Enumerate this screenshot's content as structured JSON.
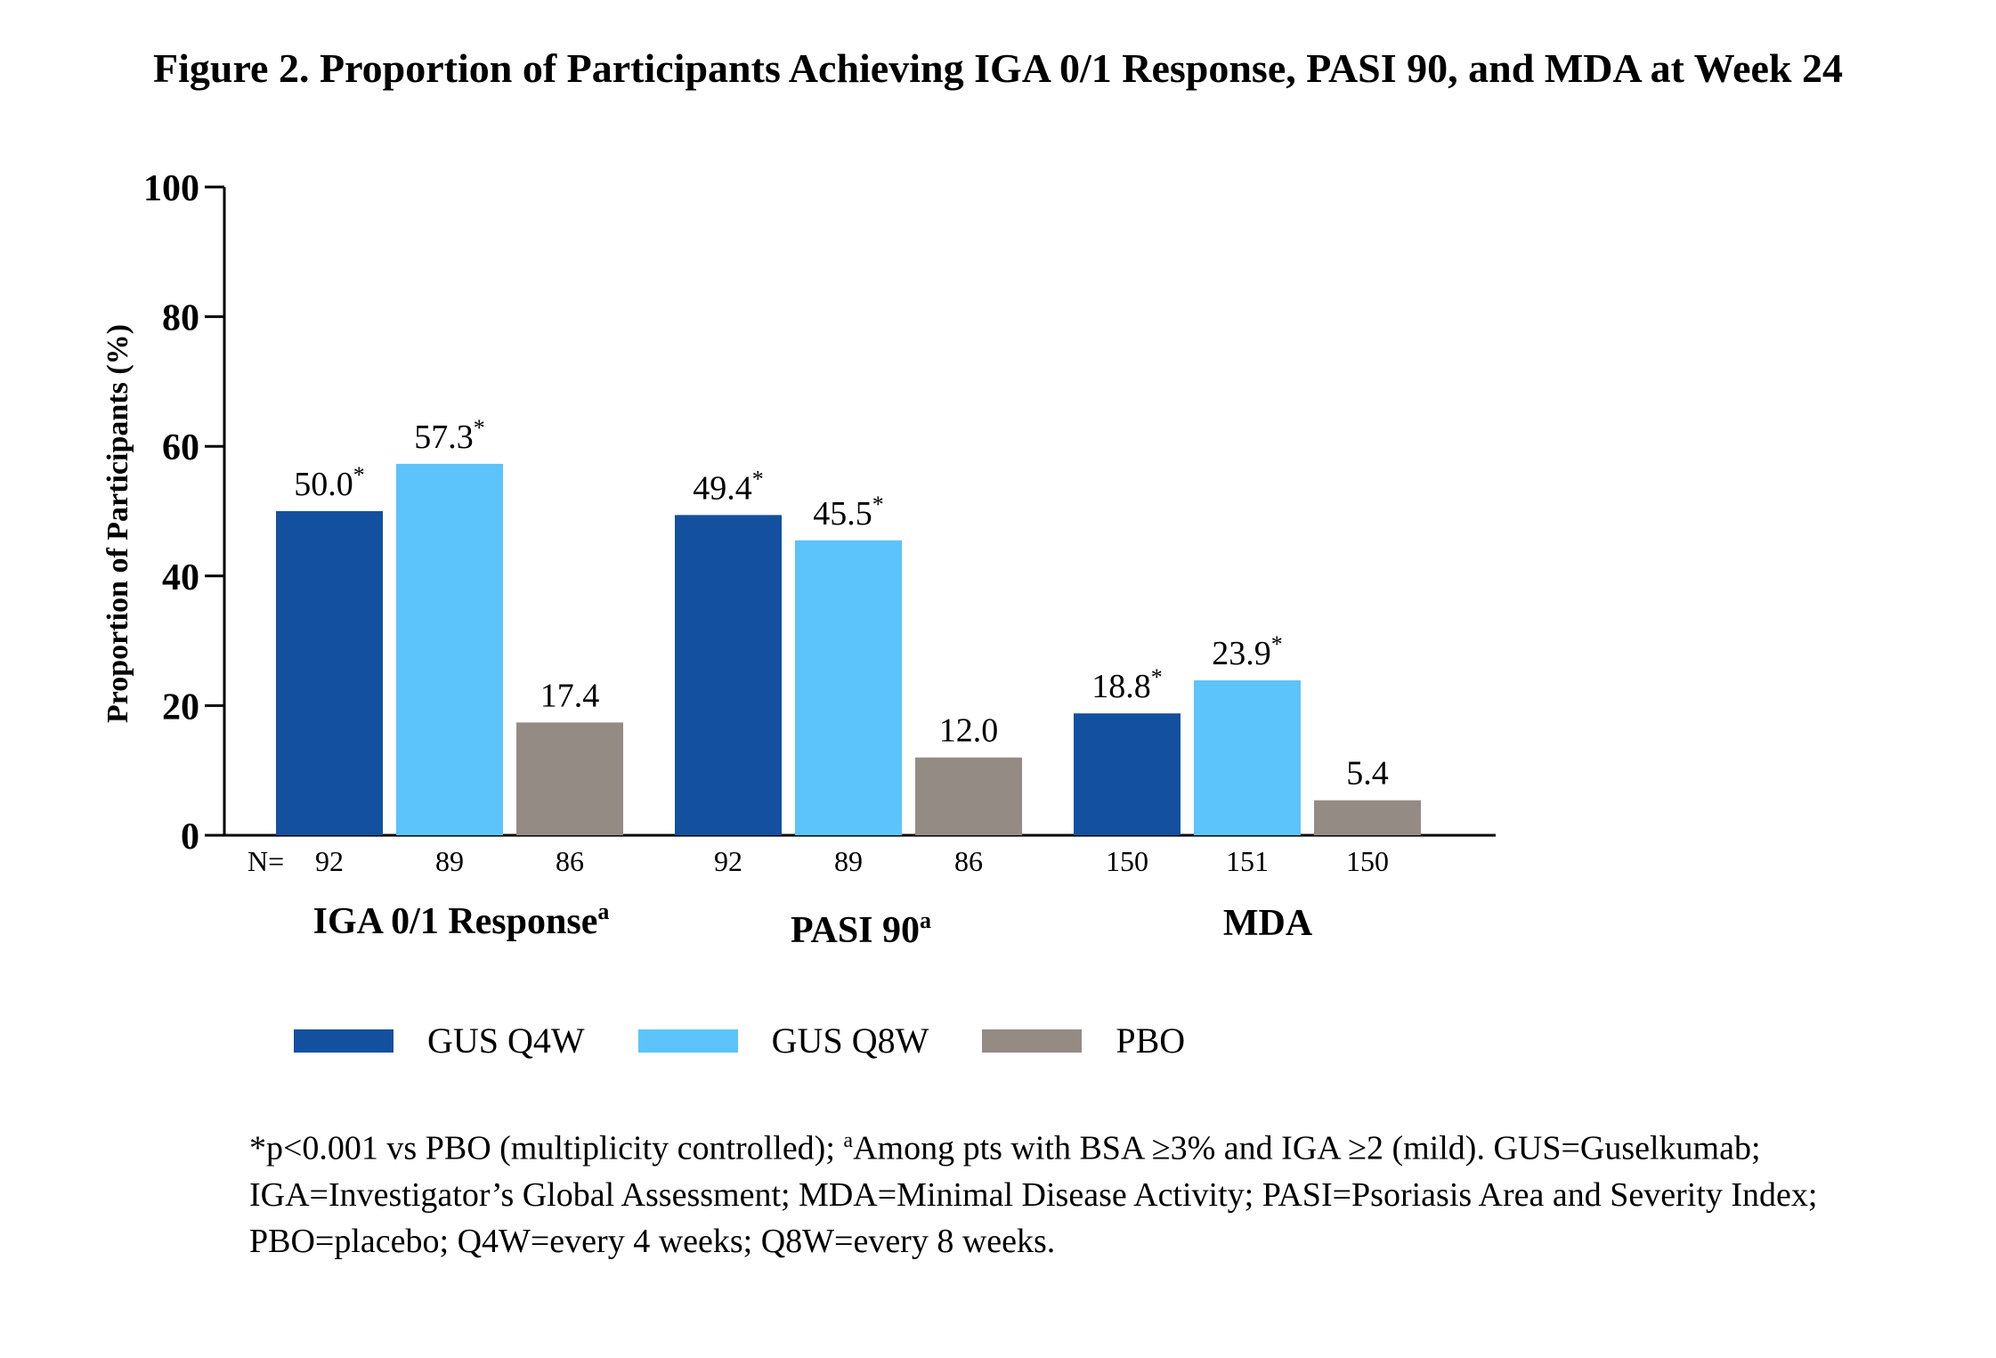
{
  "title": "Figure 2. Proportion of Participants Achieving IGA 0/1 Response, PASI 90, and MDA at Week 24",
  "chart_data": {
    "type": "bar",
    "ylabel": "Proportion of Participants (%)",
    "ylim": [
      0,
      100
    ],
    "yticks": [
      "0",
      "20",
      "40",
      "60",
      "80",
      "100"
    ],
    "n_prefix": "N=",
    "groups": [
      {
        "label": "IGA 0/1 Response",
        "sup": "a",
        "n": [
          "92",
          "89",
          "86"
        ]
      },
      {
        "label": "PASI 90",
        "sup": "a",
        "n": [
          "92",
          "89",
          "86"
        ]
      },
      {
        "label": "MDA",
        "sup": "",
        "n": [
          "150",
          "151",
          "150"
        ]
      }
    ],
    "series": [
      {
        "name": "GUS Q4W",
        "color": "#1350a0",
        "values": [
          50.0,
          49.4,
          18.8
        ],
        "labels": [
          "50.0",
          "49.4",
          "18.8"
        ],
        "significant": [
          true,
          true,
          true
        ]
      },
      {
        "name": "GUS Q8W",
        "color": "#5dc3fb",
        "values": [
          57.3,
          45.5,
          23.9
        ],
        "labels": [
          "57.3",
          "45.5",
          "23.9"
        ],
        "significant": [
          true,
          true,
          true
        ]
      },
      {
        "name": "PBO",
        "color": "#958b85",
        "values": [
          17.4,
          12.0,
          5.4
        ],
        "labels": [
          "17.4",
          "12.0",
          "5.4"
        ],
        "significant": [
          false,
          false,
          false
        ]
      }
    ],
    "significance_marker": "*",
    "legend_position": "bottom"
  },
  "footnote": {
    "part1": "*p<0.001 vs PBO (multiplicity controlled); ",
    "sup": "a",
    "part2": "Among pts with BSA ≥3% and IGA ≥2 (mild). GUS=Guselkumab; IGA=Investigator’s Global Assessment; MDA=Minimal Disease Activity; PASI=Psoriasis Area and Severity Index; PBO=placebo; Q4W=every 4 weeks; Q8W=every 8 weeks."
  }
}
